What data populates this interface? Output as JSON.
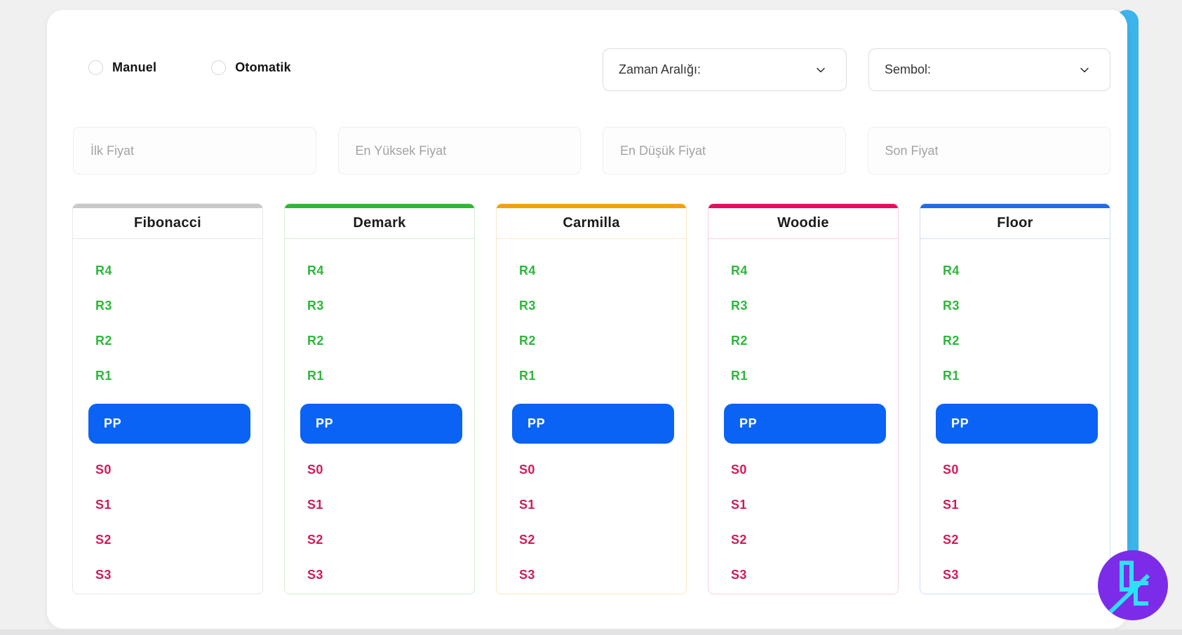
{
  "mode_options": [
    {
      "label": "Manuel"
    },
    {
      "label": "Otomatik"
    }
  ],
  "selects": {
    "time_range": {
      "label": "Zaman Aralığı:"
    },
    "symbol": {
      "label": "Sembol:"
    }
  },
  "price_inputs": [
    {
      "placeholder": "İlk Fiyat"
    },
    {
      "placeholder": "En Yüksek Fiyat"
    },
    {
      "placeholder": "En Düşük Fiyat"
    },
    {
      "placeholder": "Son Fiyat"
    }
  ],
  "pivot_cards": [
    {
      "title": "Fibonacci",
      "accent": "#c9c9c9",
      "border": "#e7e7e7"
    },
    {
      "title": "Demark",
      "accent": "#2db833",
      "border": "#d4eed4"
    },
    {
      "title": "Carmilla",
      "accent": "#f8a008",
      "border": "#fbe8c6"
    },
    {
      "title": "Woodie",
      "accent": "#e90b5f",
      "border": "#f9cfdf"
    },
    {
      "title": "Floor",
      "accent": "#1c6de6",
      "border": "#cfdff8"
    }
  ],
  "levels": {
    "resistances": [
      "R4",
      "R3",
      "R2",
      "R1"
    ],
    "pivot": "PP",
    "supports": [
      "S0",
      "S1",
      "S2",
      "S3"
    ]
  },
  "colors": {
    "resistance_text": "#2eb73c",
    "support_text": "#cf1b57",
    "pivot_bg": "#0b63f5",
    "pivot_text": "#ffffff",
    "stripe": "#3bb3eb",
    "logo_bg": "#7c2ce8",
    "logo_glyph": "#2ee0f6"
  }
}
